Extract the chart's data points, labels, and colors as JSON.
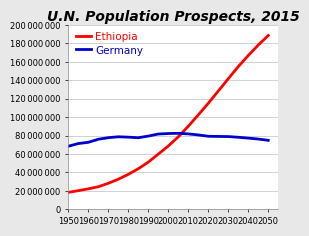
{
  "title": "U.N. Population Prospects, 2015",
  "xlim": [
    1950,
    2055
  ],
  "ylim": [
    0,
    200000000
  ],
  "xticks": [
    1950,
    1960,
    1970,
    1980,
    1990,
    2000,
    2010,
    2020,
    2030,
    2040,
    2050
  ],
  "yticks": [
    0,
    20000000,
    40000000,
    60000000,
    80000000,
    100000000,
    120000000,
    140000000,
    160000000,
    180000000,
    200000000
  ],
  "ethiopia": {
    "label": "Ethiopia",
    "color": "#ff0000",
    "years": [
      1950,
      1955,
      1960,
      1965,
      1970,
      1975,
      1980,
      1985,
      1990,
      1995,
      2000,
      2005,
      2010,
      2015,
      2020,
      2025,
      2030,
      2035,
      2040,
      2045,
      2050
    ],
    "values": [
      18434000,
      20248000,
      22244000,
      24511000,
      28223000,
      32659000,
      37944000,
      43989000,
      51228000,
      59876000,
      68614000,
      78620000,
      90076000,
      102374000,
      114964000,
      128249000,
      141580000,
      154786000,
      166776000,
      178110000,
      188520000
    ]
  },
  "germany": {
    "label": "Germany",
    "color": "#0000cd",
    "years": [
      1950,
      1955,
      1960,
      1965,
      1970,
      1975,
      1980,
      1985,
      1990,
      1995,
      2000,
      2005,
      2010,
      2015,
      2020,
      2025,
      2030,
      2035,
      2040,
      2045,
      2050
    ],
    "values": [
      68376000,
      71352000,
      72673000,
      75964000,
      77708000,
      78673000,
      78289000,
      77661000,
      79433000,
      81661000,
      82212000,
      82469000,
      81802000,
      80689000,
      79234000,
      79050000,
      78902000,
      78167000,
      77220000,
      76230000,
      74809000
    ]
  },
  "background_color": "#e8e8e8",
  "plot_bg_color": "#ffffff",
  "grid_color": "#c0c0c0",
  "title_fontsize": 10,
  "legend_fontsize": 7.5,
  "tick_fontsize": 6,
  "line_width": 2.0
}
